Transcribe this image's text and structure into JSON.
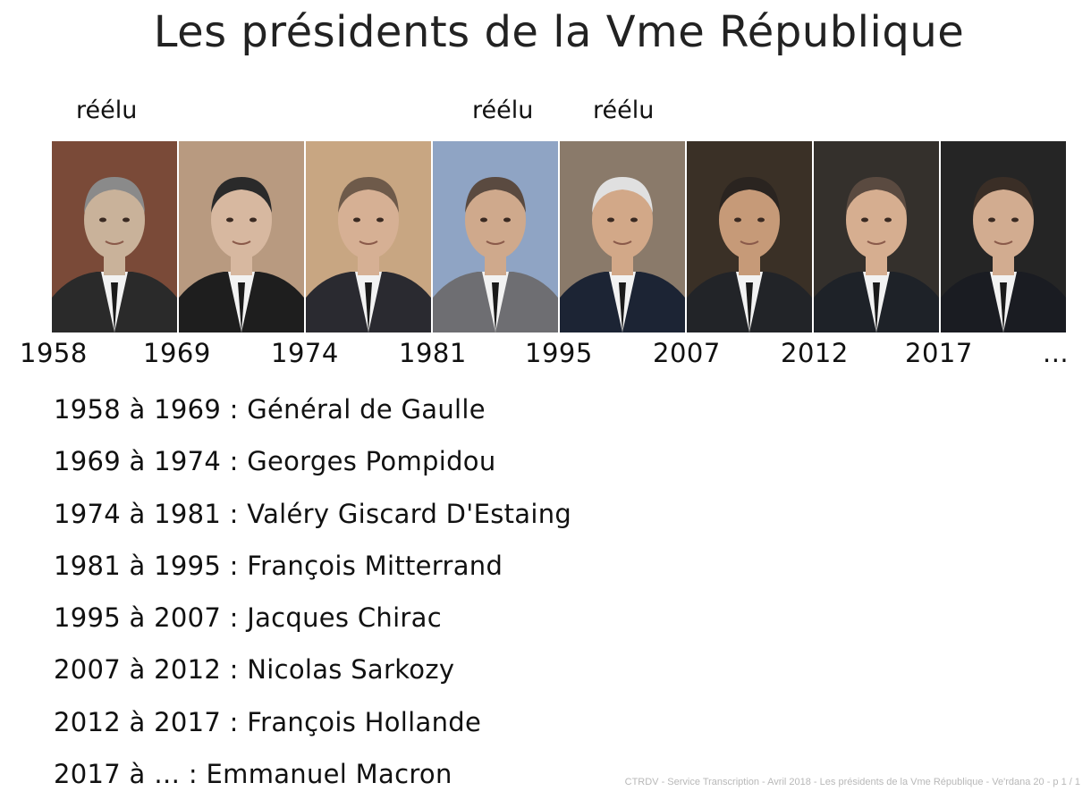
{
  "title": "Les présidents de la Vme République",
  "reelu_labels": [
    "réélu",
    "réélu",
    "réélu"
  ],
  "timeline_years": [
    "1958",
    "1969",
    "1974",
    "1981",
    "1995",
    "2007",
    "2012",
    "2017",
    "..."
  ],
  "presidents": [
    {
      "icon": "portrait-de-gaulle-icon",
      "bg": "#7a4a38",
      "suit": "#2a2a2a",
      "skin": "#c9b29a",
      "hair": "#8a8a8a"
    },
    {
      "icon": "portrait-pompidou-icon",
      "bg": "#b89a80",
      "suit": "#1e1e1e",
      "skin": "#d7b8a0",
      "hair": "#2a2a2a"
    },
    {
      "icon": "portrait-giscard-icon",
      "bg": "#c8a682",
      "suit": "#2a2a30",
      "skin": "#d6b094",
      "hair": "#6e5a4a"
    },
    {
      "icon": "portrait-mitterrand-icon",
      "bg": "#8fa4c4",
      "suit": "#6e6e72",
      "skin": "#cfa98c",
      "hair": "#5a4a40"
    },
    {
      "icon": "portrait-chirac-icon",
      "bg": "#8a7a6a",
      "suit": "#1c2434",
      "skin": "#d2a888",
      "hair": "#e0e0e0"
    },
    {
      "icon": "portrait-sarkozy-icon",
      "bg": "#3a3026",
      "suit": "#222428",
      "skin": "#c69a78",
      "hair": "#2a2420"
    },
    {
      "icon": "portrait-hollande-icon",
      "bg": "#34302c",
      "suit": "#1e2228",
      "skin": "#d6ae90",
      "hair": "#5a4a40"
    },
    {
      "icon": "portrait-macron-icon",
      "bg": "#252525",
      "suit": "#1a1c22",
      "skin": "#d2ac90",
      "hair": "#3a2e26"
    }
  ],
  "list": [
    "1958 à 1969 : Général de Gaulle",
    "1969 à 1974 : Georges Pompidou",
    "1974 à 1981 : Valéry Giscard D'Estaing",
    "1981 à 1995 : François Mitterrand",
    "1995 à 2007 : Jacques Chirac",
    "2007 à 2012 : Nicolas Sarkozy",
    "2012 à 2017 : François Hollande",
    "2017 à … : Emmanuel Macron"
  ],
  "footer": "CTRDV - Service Transcription - Avril 2018 - Les présidents de la Vme République - Ve'rdana 20 -  p 1 / 1"
}
